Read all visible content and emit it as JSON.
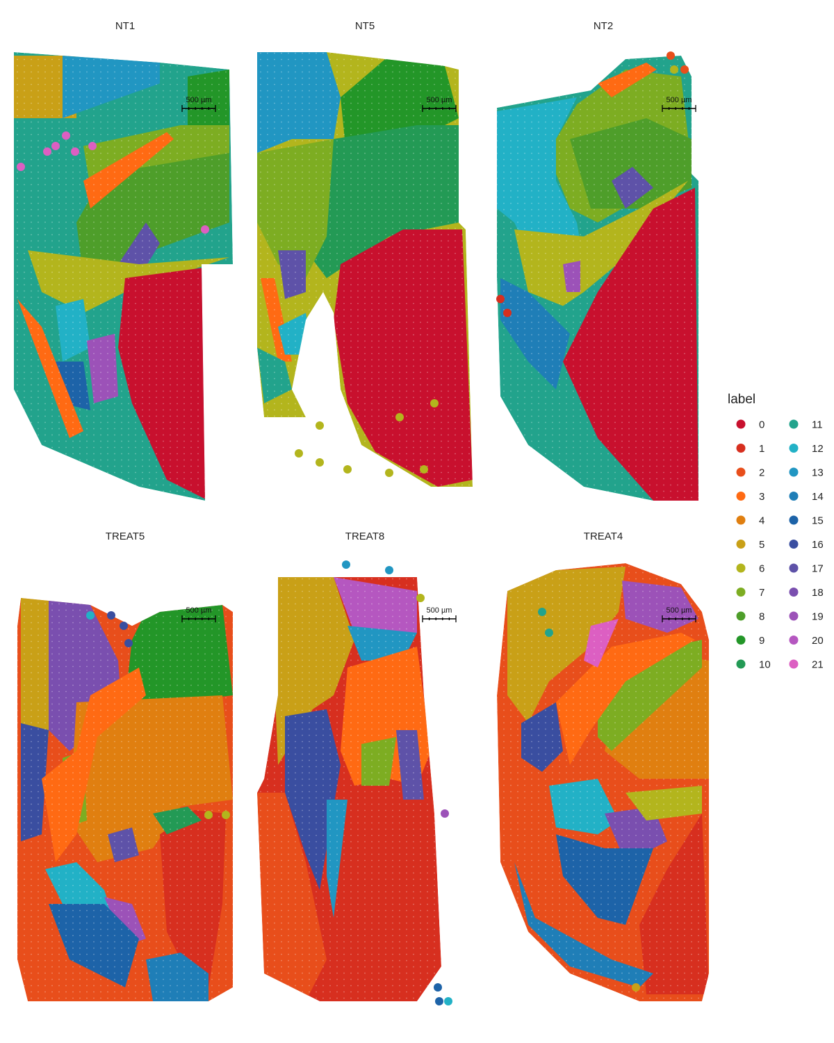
{
  "chart_data": {
    "type": "scatter",
    "description_kind": "spatial transcriptomics cluster map",
    "panels": [
      {
        "title": "NT1",
        "scalebar": "500 µm"
      },
      {
        "title": "NT5",
        "scalebar": "500 µm"
      },
      {
        "title": "NT2",
        "scalebar": "500 µm"
      },
      {
        "title": "TREAT5",
        "scalebar": "500 µm"
      },
      {
        "title": "TREAT8",
        "scalebar": "500 µm"
      },
      {
        "title": "TREAT4",
        "scalebar": "500 µm"
      }
    ],
    "legend": {
      "title": "label",
      "placement": "right",
      "entries": [
        {
          "label": "0",
          "color": "#C8102E"
        },
        {
          "label": "1",
          "color": "#D72F1F"
        },
        {
          "label": "2",
          "color": "#E84E1B"
        },
        {
          "label": "3",
          "color": "#FF6A13"
        },
        {
          "label": "4",
          "color": "#E07F10"
        },
        {
          "label": "5",
          "color": "#C9A017"
        },
        {
          "label": "6",
          "color": "#B3B51D"
        },
        {
          "label": "7",
          "color": "#7DAD22"
        },
        {
          "label": "8",
          "color": "#4E9E2A"
        },
        {
          "label": "9",
          "color": "#239628"
        },
        {
          "label": "10",
          "color": "#239A55"
        },
        {
          "label": "11",
          "color": "#22A38C"
        },
        {
          "label": "12",
          "color": "#22B1C6"
        },
        {
          "label": "13",
          "color": "#2196C2"
        },
        {
          "label": "14",
          "color": "#1F7EB7"
        },
        {
          "label": "15",
          "color": "#1D63A8"
        },
        {
          "label": "16",
          "color": "#3A4EA0"
        },
        {
          "label": "17",
          "color": "#5E52A8"
        },
        {
          "label": "18",
          "color": "#7A4FAF"
        },
        {
          "label": "19",
          "color": "#9C52B8"
        },
        {
          "label": "20",
          "color": "#B557C0"
        },
        {
          "label": "21",
          "color": "#DC5FC2"
        }
      ]
    },
    "axes": "none",
    "grid": false
  }
}
